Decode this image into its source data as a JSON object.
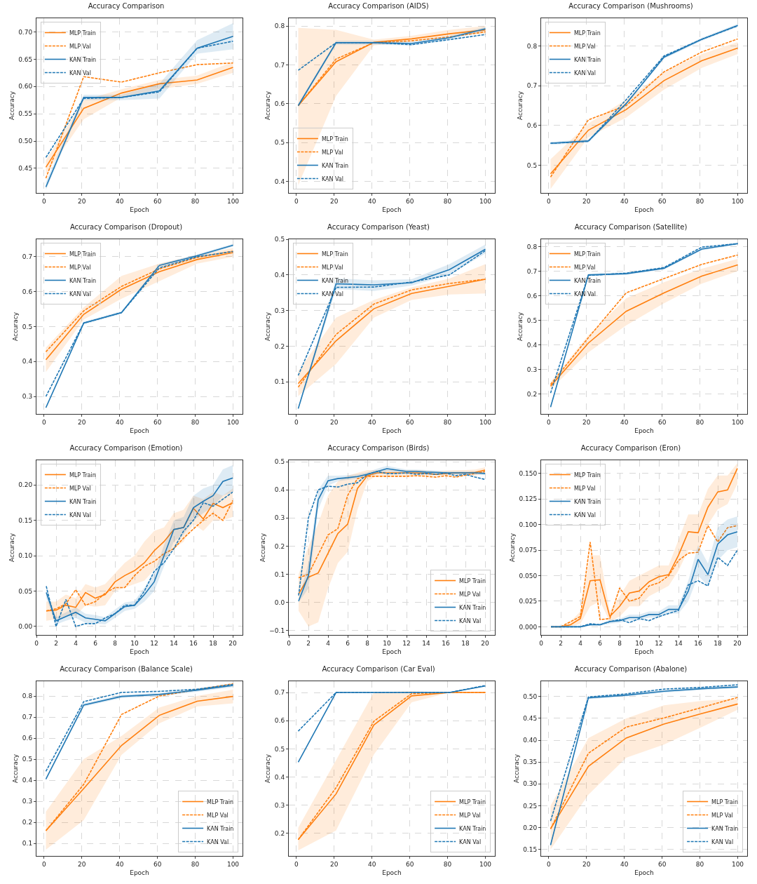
{
  "chart_data": [
    {
      "type": "line",
      "title": "Accuracy Comparison",
      "xlabel": "Epoch",
      "ylabel": "Accuracy",
      "x": [
        1,
        21,
        41,
        61,
        81,
        100
      ],
      "xlim": [
        -4,
        105
      ],
      "xticks": [
        0,
        20,
        40,
        60,
        80,
        100
      ],
      "ylim": [
        0.405,
        0.725
      ],
      "yticks": [
        {
          "value": 0.45,
          "label": "0.45"
        },
        {
          "value": 0.5,
          "label": "0.50"
        },
        {
          "value": 0.55,
          "label": "0.55"
        },
        {
          "value": 0.6,
          "label": "0.60"
        },
        {
          "value": 0.65,
          "label": "0.65"
        },
        {
          "value": 0.7,
          "label": "0.70"
        }
      ],
      "grid": true,
      "legend": "top left",
      "series": [
        {
          "name": "MLP Train",
          "color": "#ff7f0e",
          "line_style": "solid",
          "values": [
            0.452,
            0.56,
            0.588,
            0.605,
            0.612,
            0.635
          ],
          "lower": [
            0.44,
            0.54,
            0.58,
            0.595,
            0.605,
            0.625
          ],
          "upper": [
            0.465,
            0.575,
            0.595,
            0.612,
            0.62,
            0.645
          ]
        },
        {
          "name": "MLP Val",
          "color": "#ff7f0e",
          "line_style": "dashed",
          "values": [
            0.432,
            0.618,
            0.608,
            0.625,
            0.64,
            0.643
          ]
        },
        {
          "name": "KAN Train",
          "color": "#1f77b4",
          "line_style": "solid",
          "values": [
            0.416,
            0.58,
            0.58,
            0.592,
            0.67,
            0.692
          ],
          "lower": [
            0.41,
            0.575,
            0.575,
            0.578,
            0.66,
            0.668
          ],
          "upper": [
            0.425,
            0.585,
            0.585,
            0.605,
            0.685,
            0.716
          ]
        },
        {
          "name": "KAN Val",
          "color": "#1f77b4",
          "line_style": "dashed",
          "values": [
            0.47,
            0.578,
            0.58,
            0.59,
            0.67,
            0.683
          ]
        }
      ]
    },
    {
      "type": "line",
      "title": "Accuracy Comparison (AIDS)",
      "xlabel": "Epoch",
      "ylabel": "Accuracy",
      "x": [
        1,
        21,
        41,
        61,
        81,
        100
      ],
      "xlim": [
        -4,
        105
      ],
      "xticks": [
        0,
        20,
        40,
        60,
        80,
        100
      ],
      "ylim": [
        0.37,
        0.82
      ],
      "yticks": [
        0.4,
        0.5,
        0.6,
        0.7,
        0.8
      ],
      "grid": true,
      "legend": "bottom left",
      "series": [
        {
          "name": "MLP Train",
          "color": "#ff7f0e",
          "line_style": "solid",
          "values": [
            0.595,
            0.708,
            0.758,
            0.767,
            0.78,
            0.79
          ],
          "lower": [
            0.39,
            0.62,
            0.75,
            0.76,
            0.775,
            0.78
          ],
          "upper": [
            0.795,
            0.79,
            0.765,
            0.775,
            0.79,
            0.8
          ]
        },
        {
          "name": "MLP Val",
          "color": "#ff7f0e",
          "line_style": "dashed",
          "values": [
            0.595,
            0.715,
            0.757,
            0.762,
            0.772,
            0.785
          ]
        },
        {
          "name": "KAN Train",
          "color": "#1f77b4",
          "line_style": "solid",
          "values": [
            0.595,
            0.757,
            0.757,
            0.755,
            0.77,
            0.793
          ],
          "lower": [
            0.59,
            0.752,
            0.752,
            0.75,
            0.765,
            0.788
          ],
          "upper": [
            0.6,
            0.762,
            0.762,
            0.76,
            0.775,
            0.798
          ]
        },
        {
          "name": "KAN Val",
          "color": "#1f77b4",
          "line_style": "dashed",
          "values": [
            0.686,
            0.757,
            0.757,
            0.752,
            0.765,
            0.778
          ]
        }
      ]
    },
    {
      "type": "line",
      "title": "Accuracy Comparison (Mushrooms)",
      "xlabel": "Epoch",
      "ylabel": "Accuracy",
      "x": [
        1,
        21,
        41,
        61,
        81,
        100
      ],
      "xlim": [
        -4,
        105
      ],
      "xticks": [
        0,
        20,
        40,
        60,
        80,
        100
      ],
      "ylim": [
        0.43,
        0.87
      ],
      "yticks": [
        0.5,
        0.6,
        0.7,
        0.8
      ],
      "grid": true,
      "legend": "top left",
      "series": [
        {
          "name": "MLP Train",
          "color": "#ff7f0e",
          "line_style": "solid",
          "values": [
            0.478,
            0.588,
            0.64,
            0.713,
            0.763,
            0.795
          ],
          "lower": [
            0.44,
            0.57,
            0.62,
            0.69,
            0.745,
            0.78
          ],
          "upper": [
            0.515,
            0.605,
            0.665,
            0.735,
            0.78,
            0.81
          ]
        },
        {
          "name": "MLP Val",
          "color": "#ff7f0e",
          "line_style": "dashed",
          "values": [
            0.47,
            0.614,
            0.65,
            0.735,
            0.785,
            0.818
          ]
        },
        {
          "name": "KAN Train",
          "color": "#1f77b4",
          "line_style": "solid",
          "values": [
            0.555,
            0.561,
            0.655,
            0.772,
            0.817,
            0.852
          ],
          "lower": [
            0.551,
            0.557,
            0.651,
            0.768,
            0.813,
            0.848
          ],
          "upper": [
            0.559,
            0.565,
            0.659,
            0.776,
            0.821,
            0.856
          ]
        },
        {
          "name": "KAN Val",
          "color": "#1f77b4",
          "line_style": "dashed",
          "values": [
            0.555,
            0.56,
            0.665,
            0.775,
            0.817,
            0.851
          ]
        }
      ]
    },
    {
      "type": "line",
      "title": "Accuracy Comparison (Dropout)",
      "xlabel": "Epoch",
      "ylabel": "Accuracy",
      "x": [
        1,
        21,
        41,
        61,
        81,
        100
      ],
      "xlim": [
        -4,
        105
      ],
      "xticks": [
        0,
        20,
        40,
        60,
        80,
        100
      ],
      "ylim": [
        0.25,
        0.75
      ],
      "yticks": [
        0.3,
        0.4,
        0.5,
        0.6,
        0.7
      ],
      "grid": true,
      "legend": "top left",
      "series": [
        {
          "name": "MLP Train",
          "color": "#ff7f0e",
          "line_style": "solid",
          "values": [
            0.405,
            0.535,
            0.607,
            0.657,
            0.692,
            0.712
          ],
          "lower": [
            0.37,
            0.52,
            0.58,
            0.63,
            0.68,
            0.7
          ],
          "upper": [
            0.44,
            0.555,
            0.645,
            0.68,
            0.705,
            0.725
          ]
        },
        {
          "name": "MLP Val",
          "color": "#ff7f0e",
          "line_style": "dashed",
          "values": [
            0.428,
            0.545,
            0.615,
            0.665,
            0.698,
            0.716
          ]
        },
        {
          "name": "KAN Train",
          "color": "#1f77b4",
          "line_style": "solid",
          "values": [
            0.268,
            0.51,
            0.54,
            0.675,
            0.703,
            0.733
          ],
          "lower": [
            0.264,
            0.506,
            0.536,
            0.671,
            0.699,
            0.729
          ],
          "upper": [
            0.272,
            0.514,
            0.544,
            0.679,
            0.707,
            0.737
          ]
        },
        {
          "name": "KAN Val",
          "color": "#1f77b4",
          "line_style": "dashed",
          "values": [
            0.3,
            0.51,
            0.54,
            0.668,
            0.7,
            0.715
          ]
        }
      ]
    },
    {
      "type": "line",
      "title": "Accuracy Comparison (Yeast)",
      "xlabel": "Epoch",
      "ylabel": "Accuracy",
      "x": [
        1,
        21,
        41,
        61,
        81,
        100
      ],
      "xlim": [
        -4,
        105
      ],
      "xticks": [
        0,
        20,
        40,
        60,
        80,
        100
      ],
      "ylim": [
        0.01,
        0.5
      ],
      "yticks": [
        0.1,
        0.2,
        0.3,
        0.4,
        0.5
      ],
      "grid": true,
      "legend": "top left",
      "series": [
        {
          "name": "MLP Train",
          "color": "#ff7f0e",
          "line_style": "solid",
          "values": [
            0.095,
            0.215,
            0.305,
            0.348,
            0.368,
            0.388
          ],
          "lower": [
            0.06,
            0.15,
            0.28,
            0.33,
            0.345,
            0.348
          ],
          "upper": [
            0.13,
            0.28,
            0.33,
            0.365,
            0.39,
            0.43
          ]
        },
        {
          "name": "MLP Val",
          "color": "#ff7f0e",
          "line_style": "dashed",
          "values": [
            0.085,
            0.233,
            0.318,
            0.358,
            0.376,
            0.388
          ]
        },
        {
          "name": "KAN Train",
          "color": "#1f77b4",
          "line_style": "solid",
          "values": [
            0.025,
            0.375,
            0.372,
            0.378,
            0.415,
            0.472
          ],
          "lower": [
            0.02,
            0.36,
            0.355,
            0.37,
            0.4,
            0.46
          ],
          "upper": [
            0.03,
            0.39,
            0.385,
            0.388,
            0.43,
            0.485
          ]
        },
        {
          "name": "KAN Val",
          "color": "#1f77b4",
          "line_style": "dashed",
          "values": [
            0.118,
            0.365,
            0.366,
            0.38,
            0.4,
            0.468
          ]
        }
      ]
    },
    {
      "type": "line",
      "title": "Accuracy Comparison (Satellite)",
      "xlabel": "Epoch",
      "ylabel": "Accuracy",
      "x": [
        1,
        21,
        41,
        61,
        81,
        100
      ],
      "xlim": [
        -4,
        105
      ],
      "xticks": [
        0,
        20,
        40,
        60,
        80,
        100
      ],
      "ylim": [
        0.12,
        0.83
      ],
      "yticks": [
        0.2,
        0.3,
        0.4,
        0.5,
        0.6,
        0.7,
        0.8
      ],
      "grid": true,
      "legend": "top left",
      "series": [
        {
          "name": "MLP Train",
          "color": "#ff7f0e",
          "line_style": "solid",
          "values": [
            0.233,
            0.408,
            0.537,
            0.612,
            0.68,
            0.726
          ],
          "lower": [
            0.22,
            0.37,
            0.48,
            0.57,
            0.65,
            0.7
          ],
          "upper": [
            0.25,
            0.44,
            0.59,
            0.655,
            0.71,
            0.75
          ]
        },
        {
          "name": "MLP Val",
          "color": "#ff7f0e",
          "line_style": "dashed",
          "values": [
            0.24,
            0.43,
            0.612,
            0.67,
            0.728,
            0.766
          ]
        },
        {
          "name": "KAN Train",
          "color": "#1f77b4",
          "line_style": "solid",
          "values": [
            0.148,
            0.685,
            0.69,
            0.712,
            0.79,
            0.812
          ],
          "lower": [
            0.143,
            0.68,
            0.685,
            0.707,
            0.785,
            0.807
          ],
          "upper": [
            0.153,
            0.69,
            0.695,
            0.717,
            0.795,
            0.817
          ]
        },
        {
          "name": "KAN Val",
          "color": "#1f77b4",
          "line_style": "dashed",
          "values": [
            0.205,
            0.683,
            0.692,
            0.715,
            0.798,
            0.812
          ]
        }
      ]
    },
    {
      "type": "line",
      "title": "Accuracy Comparison (Emotion)",
      "xlabel": "Epoch",
      "ylabel": "Accuracy",
      "x": [
        1,
        2,
        3,
        4,
        5,
        6,
        7,
        8,
        9,
        10,
        11,
        12,
        13,
        14,
        15,
        16,
        17,
        18,
        19,
        20
      ],
      "xlim": [
        0,
        21
      ],
      "xticks": [
        0,
        2,
        4,
        6,
        8,
        10,
        12,
        14,
        16,
        18,
        20
      ],
      "ylim": [
        -0.012,
        0.235
      ],
      "yticks": [
        {
          "value": 0,
          "label": "0.00"
        },
        {
          "value": 0.05,
          "label": "0.05"
        },
        {
          "value": 0.1,
          "label": "0.10"
        },
        {
          "value": 0.15,
          "label": "0.15"
        },
        {
          "value": 0.2,
          "label": "0.20"
        }
      ],
      "grid": true,
      "legend": "top left",
      "series": [
        {
          "name": "MLP Train",
          "color": "#ff7f0e",
          "line_style": "solid",
          "values": [
            0.022,
            0.023,
            0.03,
            0.027,
            0.048,
            0.04,
            0.045,
            0.063,
            0.072,
            0.079,
            0.09,
            0.107,
            0.12,
            0.137,
            0.14,
            0.167,
            0.152,
            0.174,
            0.168,
            0.175
          ],
          "lower": [
            0.008,
            0.01,
            0.015,
            0.015,
            0.03,
            0.028,
            0.03,
            0.05,
            0.055,
            0.06,
            0.065,
            0.08,
            0.095,
            0.11,
            0.12,
            0.145,
            0.135,
            0.15,
            0.15,
            0.155
          ],
          "upper": [
            0.035,
            0.035,
            0.045,
            0.04,
            0.06,
            0.055,
            0.06,
            0.075,
            0.09,
            0.1,
            0.12,
            0.135,
            0.14,
            0.16,
            0.165,
            0.185,
            0.18,
            0.19,
            0.185,
            0.195
          ]
        },
        {
          "name": "MLP Val",
          "color": "#ff7f0e",
          "line_style": "dashed",
          "values": [
            0.022,
            0.025,
            0.032,
            0.052,
            0.03,
            0.035,
            0.047,
            0.055,
            0.055,
            0.072,
            0.085,
            0.092,
            0.103,
            0.11,
            0.125,
            0.138,
            0.15,
            0.16,
            0.15,
            0.178
          ]
        },
        {
          "name": "KAN Train",
          "color": "#1f77b4",
          "line_style": "solid",
          "values": [
            0.048,
            0.008,
            0.014,
            0.02,
            0.012,
            0.01,
            0.008,
            0.018,
            0.028,
            0.03,
            0.045,
            0.063,
            0.1,
            0.137,
            0.14,
            0.168,
            0.177,
            0.185,
            0.205,
            0.21
          ],
          "lower": [
            0.04,
            0.003,
            0.008,
            0.012,
            0.005,
            0.004,
            0.003,
            0.012,
            0.022,
            0.025,
            0.035,
            0.05,
            0.085,
            0.12,
            0.13,
            0.15,
            0.16,
            0.17,
            0.185,
            0.19
          ],
          "upper": [
            0.055,
            0.013,
            0.02,
            0.027,
            0.018,
            0.016,
            0.013,
            0.024,
            0.034,
            0.036,
            0.055,
            0.075,
            0.115,
            0.15,
            0.155,
            0.185,
            0.195,
            0.2,
            0.222,
            0.228
          ]
        },
        {
          "name": "KAN Val",
          "color": "#1f77b4",
          "line_style": "dashed",
          "values": [
            0.057,
            0,
            0.038,
            0,
            0.004,
            0.004,
            0.012,
            0.018,
            0.03,
            0.03,
            0.05,
            0.078,
            0.09,
            0.11,
            0.135,
            0.15,
            0.175,
            0.17,
            0.18,
            0.19
          ]
        }
      ]
    },
    {
      "type": "line",
      "title": "Accuracy Comparison (Birds)",
      "xlabel": "Epoch",
      "ylabel": "Accuracy",
      "x": [
        1,
        2,
        3,
        4,
        5,
        6,
        7,
        8,
        9,
        10,
        11,
        12,
        13,
        14,
        15,
        16,
        17,
        18,
        19,
        20
      ],
      "xlim": [
        0,
        21
      ],
      "xticks": [
        0,
        2,
        4,
        6,
        8,
        10,
        12,
        14,
        16,
        18,
        20
      ],
      "ylim": [
        -0.115,
        0.505
      ],
      "yticks": [
        {
          "value": -0.1,
          "label": "−0.1"
        },
        {
          "value": 0,
          "label": "0.0"
        },
        0.1,
        0.2,
        0.3,
        0.4,
        0.5
      ],
      "grid": true,
      "legend": "bottom right",
      "series": [
        {
          "name": "MLP Train",
          "color": "#ff7f0e",
          "line_style": "solid",
          "values": [
            0.03,
            0.09,
            0.105,
            0.175,
            0.245,
            0.278,
            0.405,
            0.45,
            0.46,
            0.46,
            0.46,
            0.46,
            0.46,
            0.458,
            0.455,
            0.458,
            0.46,
            0.46,
            0.462,
            0.47
          ],
          "lower": [
            -0.03,
            -0.085,
            -0.07,
            0.05,
            0.14,
            0.18,
            0.33,
            0.43,
            0.45,
            0.45,
            0.45,
            0.45,
            0.45,
            0.45,
            0.45,
            0.45,
            0.45,
            0.45,
            0.45,
            0.46
          ],
          "upper": [
            0.1,
            0.2,
            0.28,
            0.38,
            0.43,
            0.45,
            0.46,
            0.47,
            0.47,
            0.47,
            0.47,
            0.47,
            0.47,
            0.468,
            0.465,
            0.468,
            0.47,
            0.47,
            0.472,
            0.48
          ]
        },
        {
          "name": "MLP Val",
          "color": "#ff7f0e",
          "line_style": "dashed",
          "values": [
            0.088,
            0.1,
            0.17,
            0.24,
            0.262,
            0.38,
            0.44,
            0.448,
            0.448,
            0.448,
            0.448,
            0.448,
            0.45,
            0.448,
            0.445,
            0.45,
            0.445,
            0.452,
            0.458,
            0.465
          ]
        },
        {
          "name": "KAN Train",
          "color": "#1f77b4",
          "line_style": "solid",
          "values": [
            0.005,
            0.095,
            0.365,
            0.432,
            0.44,
            0.443,
            0.447,
            0.455,
            0.465,
            0.475,
            0.47,
            0.465,
            0.465,
            0.463,
            0.462,
            0.46,
            0.46,
            0.46,
            0.46,
            0.458
          ],
          "lower": [
            0,
            0.05,
            0.33,
            0.415,
            0.43,
            0.435,
            0.44,
            0.45,
            0.455,
            0.465,
            0.462,
            0.458,
            0.458,
            0.456,
            0.455,
            0.454,
            0.454,
            0.454,
            0.454,
            0.452
          ],
          "upper": [
            0.01,
            0.14,
            0.4,
            0.45,
            0.45,
            0.452,
            0.455,
            0.462,
            0.475,
            0.485,
            0.478,
            0.472,
            0.472,
            0.47,
            0.468,
            0.466,
            0.466,
            0.466,
            0.466,
            0.464
          ]
        },
        {
          "name": "KAN Val",
          "color": "#1f77b4",
          "line_style": "dashed",
          "values": [
            0.025,
            0.3,
            0.4,
            0.413,
            0.41,
            0.42,
            0.425,
            0.455,
            0.465,
            0.458,
            0.458,
            0.46,
            0.455,
            0.458,
            0.455,
            0.46,
            0.45,
            0.455,
            0.445,
            0.437
          ]
        }
      ]
    },
    {
      "type": "line",
      "title": "Accuracy Comparison (Eron)",
      "xlabel": "Epoch",
      "ylabel": "Accuracy",
      "x": [
        1,
        2,
        3,
        4,
        5,
        6,
        7,
        8,
        9,
        10,
        11,
        12,
        13,
        14,
        15,
        16,
        17,
        18,
        19,
        20
      ],
      "xlim": [
        0,
        21
      ],
      "xticks": [
        0,
        2,
        4,
        6,
        8,
        10,
        12,
        14,
        16,
        18,
        20
      ],
      "ylim": [
        -0.008,
        0.163
      ],
      "yticks": [
        {
          "value": 0,
          "label": "0.000"
        },
        {
          "value": 0.025,
          "label": "0.025"
        },
        {
          "value": 0.05,
          "label": "0.050"
        },
        {
          "value": 0.075,
          "label": "0.075"
        },
        {
          "value": 0.1,
          "label": "0.100"
        },
        {
          "value": 0.125,
          "label": "0.125"
        },
        {
          "value": 0.15,
          "label": "0.150"
        }
      ],
      "grid": true,
      "legend": "top left",
      "series": [
        {
          "name": "MLP Train",
          "color": "#ff7f0e",
          "line_style": "solid",
          "values": [
            0,
            0,
            0.002,
            0.008,
            0.045,
            0.046,
            0.01,
            0.02,
            0.033,
            0.035,
            0.044,
            0.049,
            0.051,
            0.07,
            0.093,
            0.092,
            0.117,
            0.132,
            0.134,
            0.155
          ],
          "lower": [
            0,
            0,
            0,
            0.003,
            0.02,
            0.025,
            0.005,
            0.01,
            0.02,
            0.02,
            0.03,
            0.035,
            0.04,
            0.055,
            0.075,
            0.075,
            0.1,
            0.115,
            0.12,
            0.14
          ],
          "upper": [
            0,
            0,
            0.005,
            0.015,
            0.07,
            0.07,
            0.015,
            0.03,
            0.045,
            0.05,
            0.055,
            0.06,
            0.06,
            0.085,
            0.11,
            0.11,
            0.135,
            0.148,
            0.148,
            0.16
          ]
        },
        {
          "name": "MLP Val",
          "color": "#ff7f0e",
          "line_style": "dashed",
          "values": [
            null,
            0,
            0.005,
            0.01,
            0.083,
            0.007,
            0.008,
            0.038,
            0.025,
            0.028,
            0.04,
            0.043,
            0.05,
            0.065,
            0.072,
            0.073,
            0.099,
            0.083,
            0.097,
            0.099
          ]
        },
        {
          "name": "KAN Train",
          "color": "#1f77b4",
          "line_style": "solid",
          "values": [
            0,
            0,
            0,
            0,
            0.002,
            0.002,
            0.005,
            0.006,
            0.009,
            0.009,
            0.012,
            0.012,
            0.017,
            0.017,
            0.035,
            0.066,
            0.051,
            0.081,
            0.09,
            0.093
          ],
          "lower": [
            0,
            0,
            0,
            0,
            0.001,
            0.001,
            0.003,
            0.004,
            0.006,
            0.006,
            0.009,
            0.009,
            0.013,
            0.013,
            0.025,
            0.05,
            0.04,
            0.065,
            0.075,
            0.078
          ],
          "upper": [
            0,
            0,
            0,
            0,
            0.003,
            0.003,
            0.007,
            0.008,
            0.012,
            0.012,
            0.015,
            0.015,
            0.021,
            0.021,
            0.045,
            0.08,
            0.062,
            0.097,
            0.105,
            0.108
          ]
        },
        {
          "name": "KAN Val",
          "color": "#1f77b4",
          "line_style": "dashed",
          "values": [
            0,
            0,
            0,
            0,
            0.003,
            0.002,
            0.005,
            0.007,
            0.004,
            0.008,
            0.006,
            0.01,
            0.013,
            0.016,
            0.041,
            0.045,
            0.04,
            0.068,
            0.06,
            0.075
          ]
        }
      ]
    },
    {
      "type": "line",
      "title": "Accuracy Comparison (Balance Scale)",
      "xlabel": "Epoch",
      "ylabel": "Accuracy",
      "x": [
        1,
        21,
        41,
        61,
        81,
        100
      ],
      "xlim": [
        -4,
        105
      ],
      "xticks": [
        0,
        20,
        40,
        60,
        80,
        100
      ],
      "ylim": [
        0.04,
        0.87
      ],
      "yticks": [
        0.1,
        0.2,
        0.3,
        0.4,
        0.5,
        0.6,
        0.7,
        0.8
      ],
      "grid": true,
      "legend": "bottom right",
      "series": [
        {
          "name": "MLP Train",
          "color": "#ff7f0e",
          "line_style": "solid",
          "values": [
            0.16,
            0.36,
            0.565,
            0.708,
            0.775,
            0.798
          ],
          "lower": [
            0.07,
            0.21,
            0.52,
            0.67,
            0.75,
            0.765
          ],
          "upper": [
            0.25,
            0.5,
            0.61,
            0.745,
            0.8,
            0.83
          ]
        },
        {
          "name": "MLP Val",
          "color": "#ff7f0e",
          "line_style": "dashed",
          "values": [
            0.16,
            0.38,
            0.712,
            0.8,
            0.83,
            0.858
          ]
        },
        {
          "name": "KAN Train",
          "color": "#1f77b4",
          "line_style": "solid",
          "values": [
            0.405,
            0.757,
            0.798,
            0.807,
            0.828,
            0.85
          ],
          "lower": [
            0.397,
            0.749,
            0.79,
            0.799,
            0.82,
            0.842
          ],
          "upper": [
            0.413,
            0.765,
            0.806,
            0.815,
            0.836,
            0.858
          ]
        },
        {
          "name": "KAN Val",
          "color": "#1f77b4",
          "line_style": "dashed",
          "values": [
            0.442,
            0.773,
            0.817,
            0.822,
            0.832,
            0.855
          ]
        }
      ]
    },
    {
      "type": "line",
      "title": "Accuracy Comparison (Car Eval)",
      "xlabel": "Epoch",
      "ylabel": "Accuracy",
      "x": [
        1,
        21,
        41,
        61,
        81,
        100
      ],
      "xlim": [
        -4,
        105
      ],
      "xticks": [
        0,
        20,
        40,
        60,
        80,
        100
      ],
      "ylim": [
        0.12,
        0.74
      ],
      "yticks": [
        0.2,
        0.3,
        0.4,
        0.5,
        0.6,
        0.7
      ],
      "grid": true,
      "legend": "bottom right",
      "series": [
        {
          "name": "MLP Train",
          "color": "#ff7f0e",
          "line_style": "solid",
          "values": [
            0.178,
            0.34,
            0.585,
            0.688,
            0.7,
            0.7
          ],
          "lower": [
            0.14,
            0.21,
            0.48,
            0.665,
            0.7,
            0.7
          ],
          "upper": [
            0.22,
            0.46,
            0.7,
            0.705,
            0.7,
            0.7
          ]
        },
        {
          "name": "MLP Val",
          "color": "#ff7f0e",
          "line_style": "dashed",
          "values": [
            0.178,
            0.362,
            0.598,
            0.696,
            0.7,
            0.7
          ]
        },
        {
          "name": "KAN Train",
          "color": "#1f77b4",
          "line_style": "solid",
          "values": [
            0.453,
            0.7,
            0.7,
            0.7,
            0.7,
            0.723
          ]
        },
        {
          "name": "KAN Val",
          "color": "#1f77b4",
          "line_style": "dashed",
          "values": [
            0.563,
            0.7,
            0.7,
            0.7,
            0.7,
            0.725
          ]
        }
      ]
    },
    {
      "type": "line",
      "title": "Accuracy Comparison (Abalone)",
      "xlabel": "Epoch",
      "ylabel": "Accuracy",
      "x": [
        1,
        21,
        41,
        61,
        81,
        100
      ],
      "xlim": [
        -4,
        105
      ],
      "xticks": [
        0,
        20,
        40,
        60,
        80,
        100
      ],
      "ylim": [
        0.135,
        0.535
      ],
      "yticks": [
        {
          "value": 0.15,
          "label": "0.15"
        },
        {
          "value": 0.2,
          "label": "0.20"
        },
        {
          "value": 0.25,
          "label": "0.25"
        },
        {
          "value": 0.3,
          "label": "0.30"
        },
        {
          "value": 0.35,
          "label": "0.35"
        },
        {
          "value": 0.4,
          "label": "0.40"
        },
        {
          "value": 0.45,
          "label": "0.45"
        },
        {
          "value": 0.5,
          "label": "0.50"
        }
      ],
      "grid": true,
      "legend": "bottom right",
      "series": [
        {
          "name": "MLP Train",
          "color": "#ff7f0e",
          "line_style": "solid",
          "values": [
            0.197,
            0.34,
            0.405,
            0.437,
            0.461,
            0.483
          ],
          "lower": [
            0.15,
            0.275,
            0.36,
            0.39,
            0.43,
            0.47
          ],
          "upper": [
            0.25,
            0.405,
            0.45,
            0.48,
            0.49,
            0.495
          ]
        },
        {
          "name": "MLP Val",
          "color": "#ff7f0e",
          "line_style": "dashed",
          "values": [
            0.197,
            0.37,
            0.43,
            0.451,
            0.475,
            0.498
          ]
        },
        {
          "name": "KAN Train",
          "color": "#1f77b4",
          "line_style": "solid",
          "values": [
            0.16,
            0.497,
            0.503,
            0.512,
            0.518,
            0.522
          ],
          "lower": [
            0.157,
            0.494,
            0.5,
            0.509,
            0.515,
            0.519
          ],
          "upper": [
            0.163,
            0.5,
            0.506,
            0.515,
            0.521,
            0.525
          ]
        },
        {
          "name": "KAN Val",
          "color": "#1f77b4",
          "line_style": "dashed",
          "values": [
            0.215,
            0.499,
            0.506,
            0.517,
            0.521,
            0.527
          ]
        }
      ]
    }
  ]
}
